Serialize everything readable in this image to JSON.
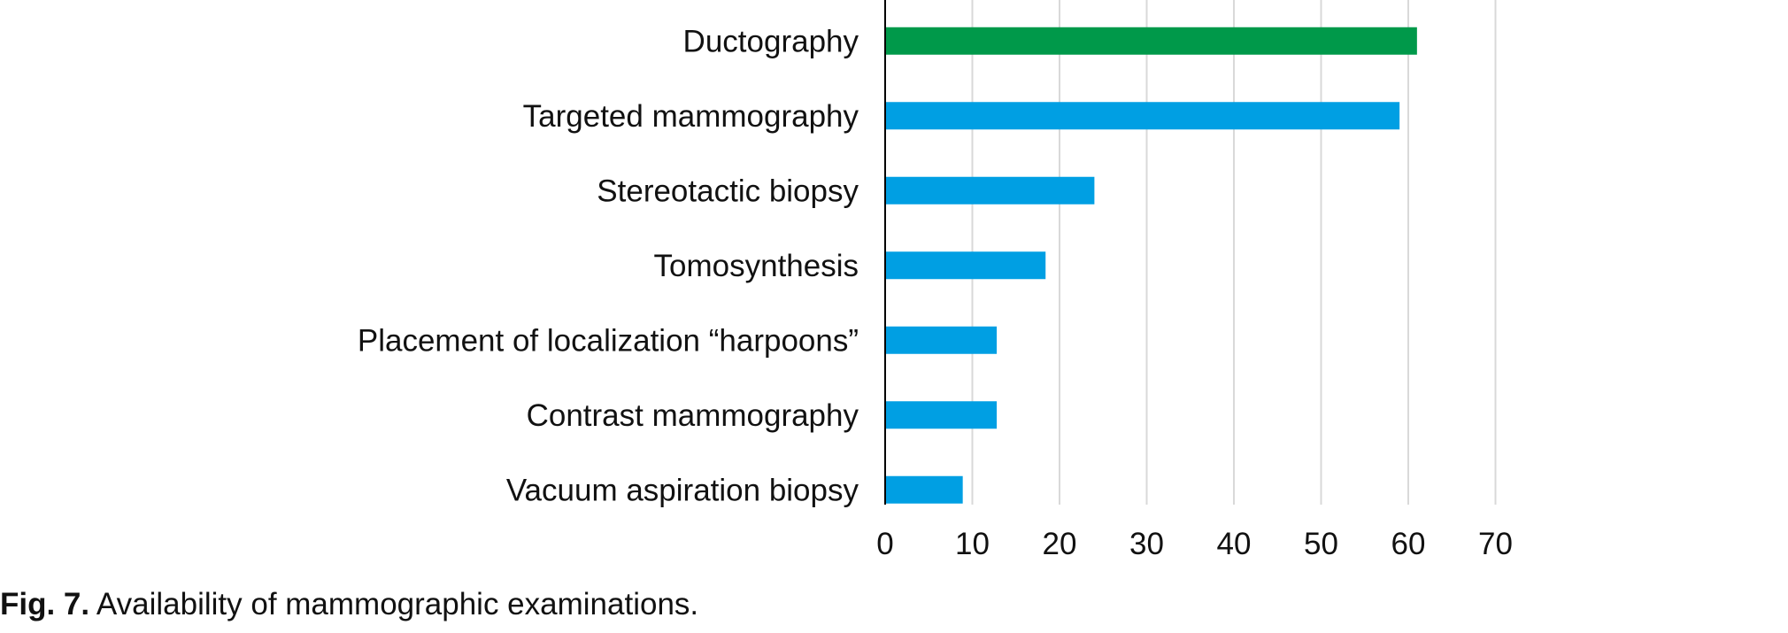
{
  "chart_data": {
    "type": "bar",
    "orientation": "horizontal",
    "categories": [
      "Ductography",
      "Targeted mammography",
      "Stereotactic biopsy",
      "Tomosynthesis",
      "Placement of localization “harpoons”",
      "Contrast mammography",
      "Vacuum aspiration biopsy"
    ],
    "values": [
      61,
      59,
      24,
      18.4,
      12.8,
      12.8,
      8.9
    ],
    "bar_colors": [
      "#00994a",
      "#009fe3",
      "#009fe3",
      "#009fe3",
      "#009fe3",
      "#009fe3",
      "#009fe3"
    ],
    "xlim": [
      0,
      70
    ],
    "xticks": [
      "0",
      "10",
      "20",
      "30",
      "40",
      "50",
      "60",
      "70"
    ],
    "grid": "vertical",
    "grid_color": "#d9d9d9",
    "axis_color": "#000000"
  },
  "caption": {
    "label": "Fig. 7.",
    "text": "Availability of mammographic examinations."
  }
}
